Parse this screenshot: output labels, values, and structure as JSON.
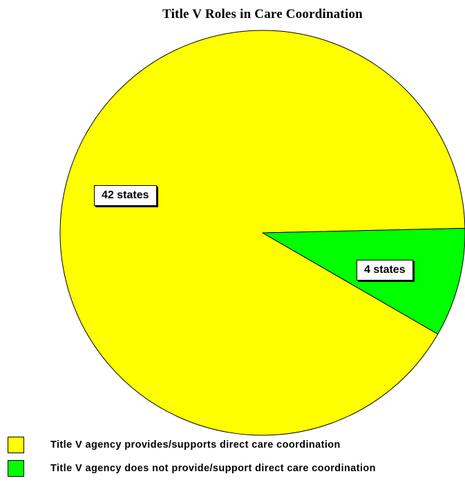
{
  "chart_data": {
    "type": "pie",
    "title": "Title V Roles in Care Coordination",
    "slices": [
      {
        "name": "Title V agency provides/supports direct care coordination",
        "value": 42,
        "label": "42 states",
        "color": "#ffff00"
      },
      {
        "name": "Title V agency does not provide/support direct care coordination",
        "value": 4,
        "label": "4 states",
        "color": "#00ff00"
      }
    ],
    "legend_position": "bottom-left",
    "outline_color": "#000000"
  }
}
